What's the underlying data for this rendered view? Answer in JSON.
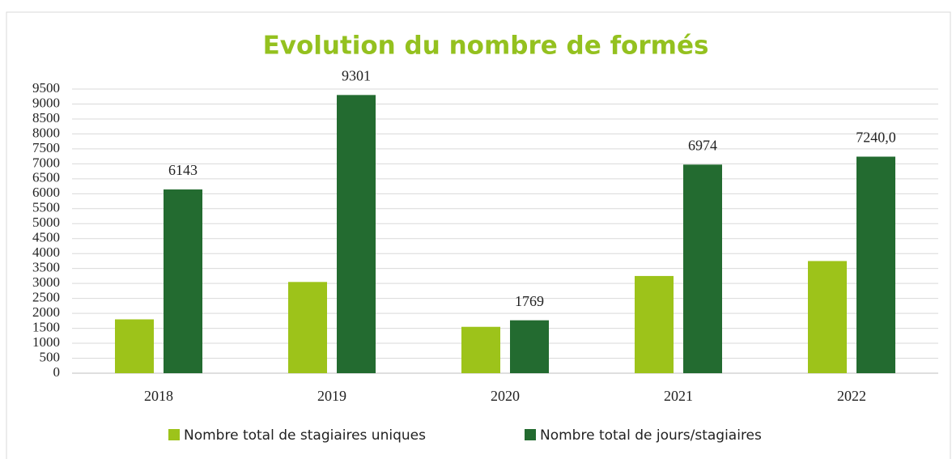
{
  "chart_data": {
    "type": "bar",
    "title": "Evolution du nombre de formés",
    "categories": [
      "2018",
      "2019",
      "2020",
      "2021",
      "2022"
    ],
    "series": [
      {
        "name": "Nombre total de stagiaires uniques",
        "color": "#9dc31a",
        "values": [
          1800,
          3050,
          1550,
          3250,
          3750
        ]
      },
      {
        "name": "Nombre total de jours/stagiaires",
        "color": "#236b30",
        "values": [
          6143,
          9301,
          1769,
          6974,
          7240
        ],
        "value_labels": [
          "6143",
          "9301",
          "1769",
          "6974",
          "7240,0"
        ]
      }
    ],
    "ylim": [
      0,
      9500
    ],
    "yticks": [
      0,
      500,
      1000,
      1500,
      2000,
      2500,
      3000,
      3500,
      4000,
      4500,
      5000,
      5500,
      6000,
      6500,
      7000,
      7500,
      8000,
      8500,
      9000,
      9500
    ],
    "grid": true,
    "legend": "bottom"
  }
}
